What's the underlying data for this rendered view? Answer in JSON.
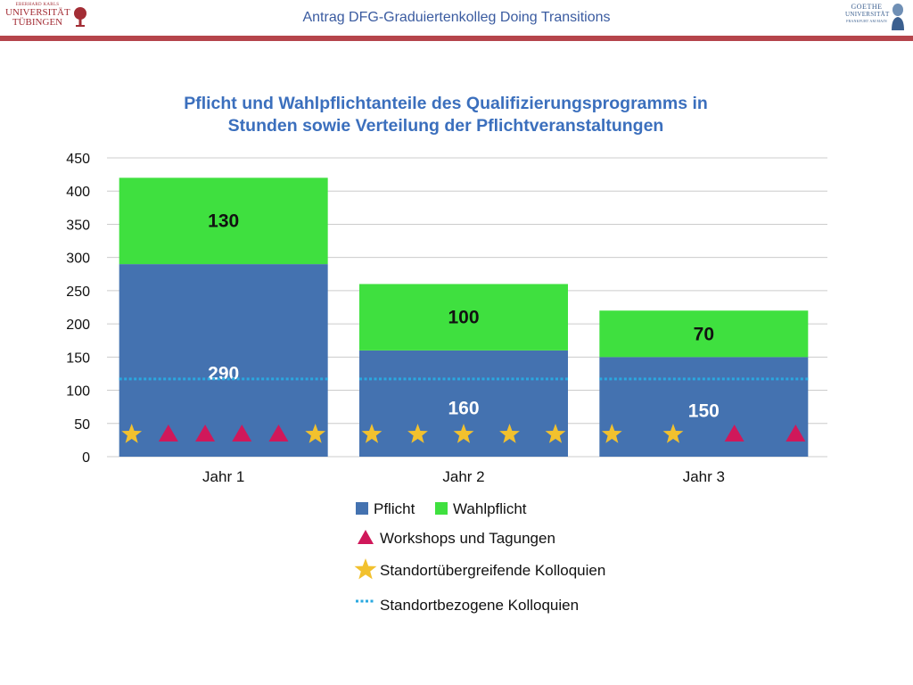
{
  "header": {
    "title": "Antrag DFG-Graduiertenkolleg Doing Transitions",
    "logo_left": {
      "line1": "EBERHARD KARLS",
      "line2": "UNIVERSITÄT",
      "line3": "TÜBINGEN"
    },
    "logo_right": {
      "line1": "GOETHE",
      "line2": "UNIVERSITÄT",
      "line3": "FRANKFURT AM MAIN"
    },
    "bar_color": "#b5444b"
  },
  "chart_data": {
    "type": "bar",
    "stacked": true,
    "title_lines": [
      "Pflicht und Wahlpflichtanteile des Qualifizierungsprogramms in",
      "Stunden sowie Verteilung der Pflichtveranstaltungen"
    ],
    "categories": [
      "Jahr 1",
      "Jahr 2",
      "Jahr 3"
    ],
    "series": [
      {
        "name": "Pflicht",
        "values": [
          290,
          160,
          150
        ],
        "color": "#4472b0"
      },
      {
        "name": "Wahlpflicht",
        "values": [
          130,
          100,
          70
        ],
        "color": "#3fe03f"
      }
    ],
    "data_labels": {
      "Pflicht": [
        "290",
        "160",
        "150"
      ],
      "Wahlpflicht": [
        "130",
        "100",
        "70"
      ]
    },
    "ylim": [
      0,
      450
    ],
    "yticks": [
      0,
      50,
      100,
      150,
      200,
      250,
      300,
      350,
      400,
      450
    ],
    "grid": true,
    "markers": {
      "Jahr 1": [
        "star",
        "triangle",
        "triangle",
        "triangle",
        "triangle",
        "star"
      ],
      "Jahr 2": [
        "star",
        "star",
        "star",
        "star",
        "star"
      ],
      "Jahr 3": [
        "star",
        "star",
        "triangle",
        "triangle"
      ]
    },
    "kolloquien_line": {
      "Jahr 1": 117,
      "Jahr 2": 117,
      "Jahr 3": 117
    },
    "colors": {
      "star": "#f2c12e",
      "triangle": "#d0185a",
      "dotted_line": "#2aa9e0",
      "grid": "#cccccc"
    },
    "legend": {
      "pflicht": "Pflicht",
      "wahlpflicht": "Wahlpflicht",
      "workshops": "Workshops und Tagungen",
      "standortuebergreifend": "Standortübergreifende Kolloquien",
      "standortbezogen": "Standortbezogene Kolloquien"
    }
  }
}
